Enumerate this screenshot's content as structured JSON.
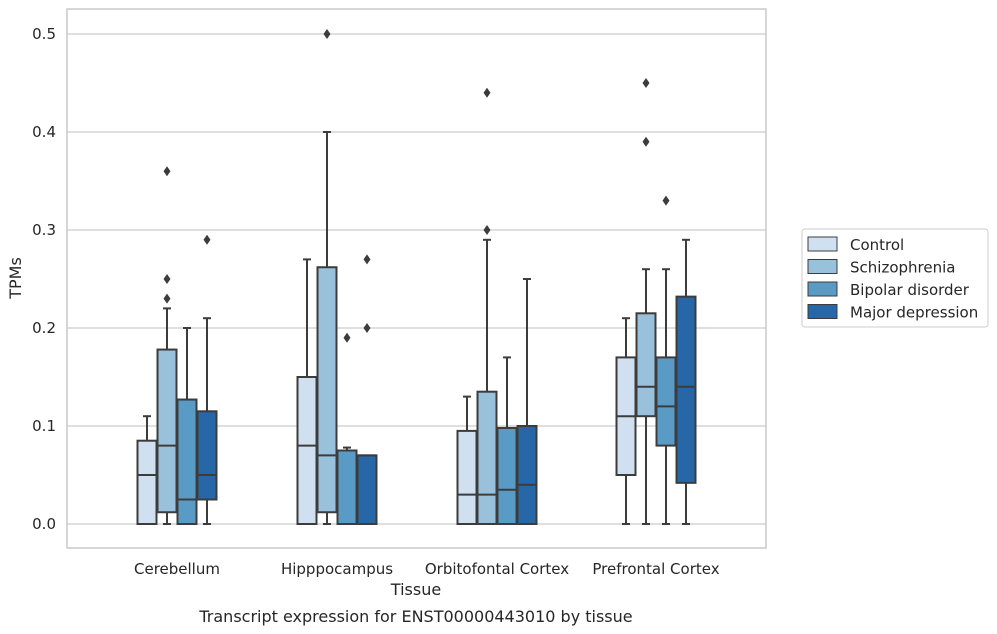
{
  "chart_data": {
    "type": "box",
    "xlabel": "Tissue",
    "ylabel": "TPMs",
    "caption": "Transcript expression for ENST00000443010 by tissue",
    "categories": [
      "Cerebellum",
      "Hipppocampus",
      "Orbitofontal Cortex",
      "Prefrontal Cortex"
    ],
    "ylim": [
      -0.025,
      0.525
    ],
    "yticks": [
      0.0,
      0.1,
      0.2,
      0.3,
      0.4,
      0.5
    ],
    "ytick_labels": [
      "0.0",
      "0.1",
      "0.2",
      "0.3",
      "0.4",
      "0.5"
    ],
    "grid": "horizontal",
    "legend_position": "right",
    "series": [
      {
        "name": "Control",
        "color": "#d0e0f0",
        "boxes": [
          {
            "min": 0.0,
            "q1": 0.0,
            "median": 0.05,
            "q3": 0.085,
            "max": 0.11,
            "outliers": []
          },
          {
            "min": 0.0,
            "q1": 0.0,
            "median": 0.08,
            "q3": 0.15,
            "max": 0.27,
            "outliers": []
          },
          {
            "min": 0.0,
            "q1": 0.0,
            "median": 0.03,
            "q3": 0.095,
            "max": 0.13,
            "outliers": []
          },
          {
            "min": 0.0,
            "q1": 0.05,
            "median": 0.11,
            "q3": 0.17,
            "max": 0.21,
            "outliers": []
          }
        ]
      },
      {
        "name": "Schizophrenia",
        "color": "#9ac1db",
        "boxes": [
          {
            "min": 0.0,
            "q1": 0.012,
            "median": 0.08,
            "q3": 0.178,
            "max": 0.22,
            "outliers": [
              0.23,
              0.25,
              0.36
            ]
          },
          {
            "min": 0.0,
            "q1": 0.012,
            "median": 0.07,
            "q3": 0.262,
            "max": 0.4,
            "outliers": [
              0.5
            ]
          },
          {
            "min": 0.0,
            "q1": 0.0,
            "median": 0.03,
            "q3": 0.135,
            "max": 0.29,
            "outliers": [
              0.3,
              0.44
            ]
          },
          {
            "min": 0.0,
            "q1": 0.11,
            "median": 0.14,
            "q3": 0.215,
            "max": 0.26,
            "outliers": [
              0.39,
              0.45
            ]
          }
        ]
      },
      {
        "name": "Bipolar disorder",
        "color": "#5a9bc6",
        "boxes": [
          {
            "min": 0.0,
            "q1": 0.0,
            "median": 0.025,
            "q3": 0.127,
            "max": 0.2,
            "outliers": []
          },
          {
            "min": 0.0,
            "q1": 0.0,
            "median": 0.075,
            "q3": 0.075,
            "max": 0.078,
            "outliers": [
              0.19
            ]
          },
          {
            "min": 0.0,
            "q1": 0.0,
            "median": 0.035,
            "q3": 0.098,
            "max": 0.17,
            "outliers": []
          },
          {
            "min": 0.0,
            "q1": 0.08,
            "median": 0.12,
            "q3": 0.17,
            "max": 0.26,
            "outliers": [
              0.33
            ]
          }
        ]
      },
      {
        "name": "Major depression",
        "color": "#2767a8",
        "boxes": [
          {
            "min": 0.0,
            "q1": 0.025,
            "median": 0.05,
            "q3": 0.115,
            "max": 0.21,
            "outliers": [
              0.29
            ]
          },
          {
            "min": 0.0,
            "q1": 0.0,
            "median": 0.07,
            "q3": 0.07,
            "max": 0.07,
            "outliers": [
              0.2,
              0.27
            ]
          },
          {
            "min": 0.0,
            "q1": 0.0,
            "median": 0.04,
            "q3": 0.1,
            "max": 0.25,
            "outliers": []
          },
          {
            "min": 0.0,
            "q1": 0.042,
            "median": 0.14,
            "q3": 0.232,
            "max": 0.29,
            "outliers": []
          }
        ]
      }
    ]
  }
}
